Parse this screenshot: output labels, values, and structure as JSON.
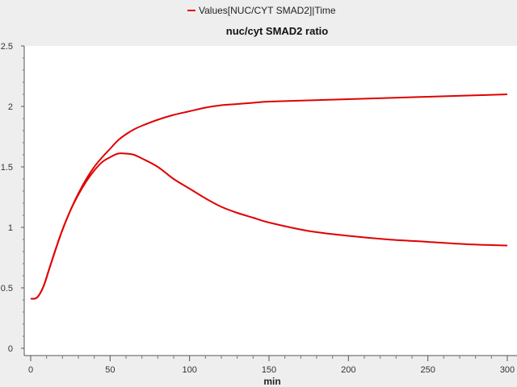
{
  "legend": {
    "label": "Values[NUC/CYT SMAD2]|Time",
    "color": "#e00000"
  },
  "chart_data": {
    "type": "line",
    "title": "nuc/cyt SMAD2 ratio",
    "xlabel": "min",
    "ylabel": "",
    "xlim": [
      0,
      300
    ],
    "ylim": [
      0,
      2.5
    ],
    "xticks": [
      0,
      50,
      100,
      150,
      200,
      250,
      300
    ],
    "yticks": [
      0,
      0.5,
      1,
      1.5,
      2,
      2.5
    ],
    "grid": false,
    "legend_position": "top",
    "series": [
      {
        "color": "#e00000",
        "x": [
          0,
          4,
          8,
          12,
          16,
          20,
          25,
          30,
          35,
          40,
          45,
          50,
          55,
          60,
          65,
          70,
          80,
          90,
          100,
          110,
          120,
          130,
          140,
          150,
          175,
          200,
          225,
          250,
          275,
          300
        ],
        "y": [
          0.41,
          0.42,
          0.51,
          0.67,
          0.83,
          0.98,
          1.14,
          1.28,
          1.4,
          1.5,
          1.58,
          1.65,
          1.72,
          1.77,
          1.81,
          1.84,
          1.89,
          1.93,
          1.96,
          1.99,
          2.01,
          2.02,
          2.03,
          2.04,
          2.05,
          2.06,
          2.07,
          2.08,
          2.09,
          2.1
        ]
      },
      {
        "color": "#e00000",
        "x": [
          0,
          4,
          8,
          12,
          16,
          20,
          25,
          30,
          35,
          40,
          45,
          50,
          55,
          60,
          65,
          70,
          80,
          90,
          100,
          110,
          120,
          130,
          140,
          150,
          175,
          200,
          225,
          250,
          275,
          300
        ],
        "y": [
          0.41,
          0.42,
          0.51,
          0.67,
          0.83,
          0.98,
          1.14,
          1.27,
          1.38,
          1.47,
          1.54,
          1.58,
          1.61,
          1.61,
          1.6,
          1.57,
          1.5,
          1.4,
          1.32,
          1.24,
          1.17,
          1.12,
          1.08,
          1.04,
          0.97,
          0.93,
          0.9,
          0.88,
          0.86,
          0.85
        ]
      }
    ]
  }
}
